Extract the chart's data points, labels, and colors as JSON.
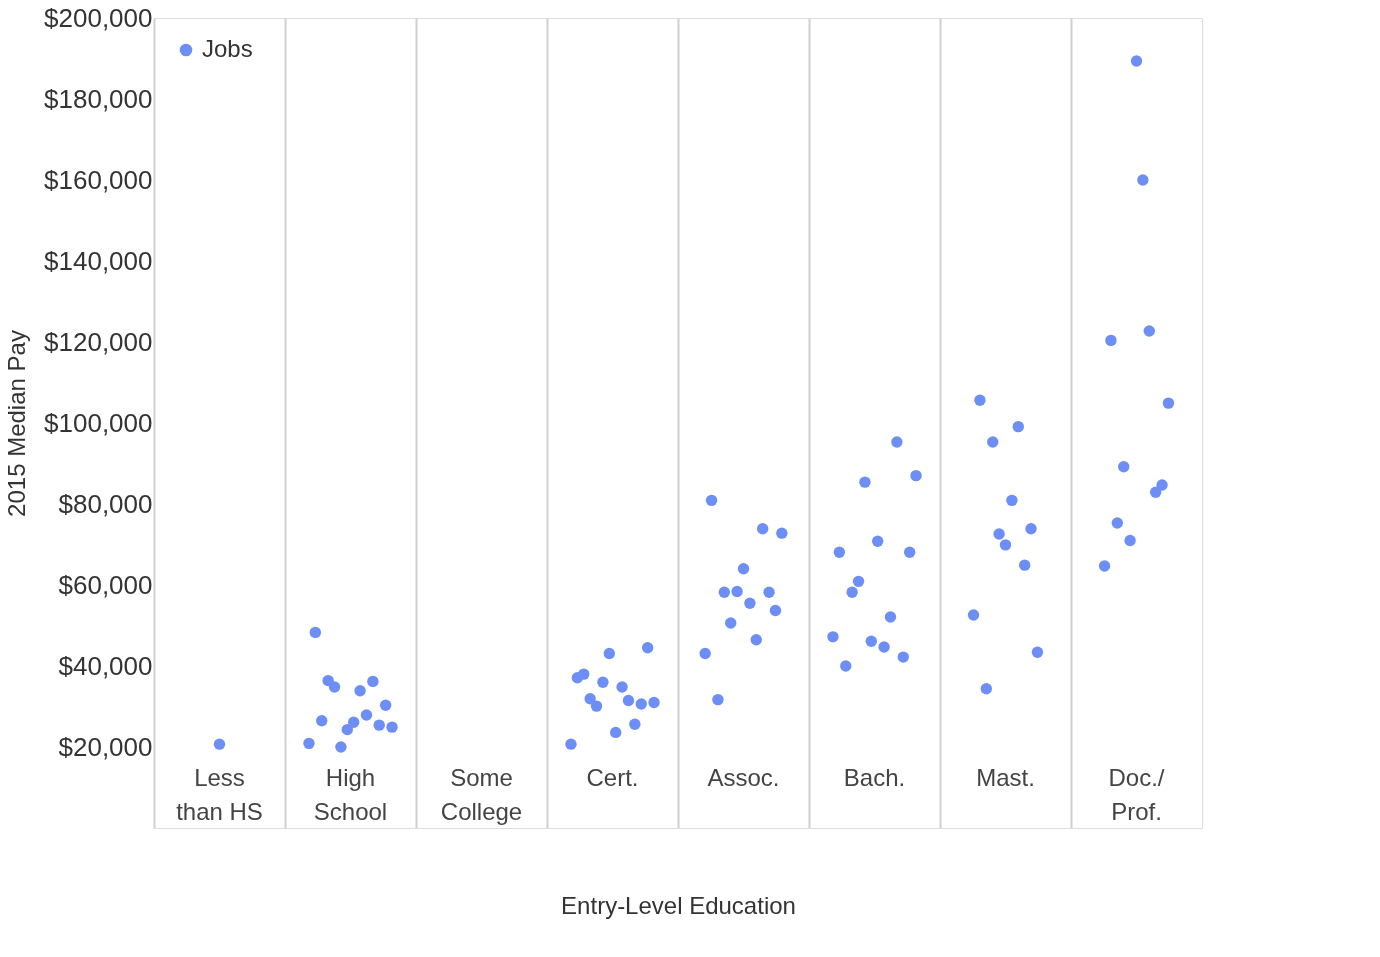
{
  "chart_data": {
    "type": "scatter",
    "xlabel": "Entry-Level Education",
    "ylabel": "2015 Median Pay",
    "categories": [
      "Less\nthan HS",
      "High\nSchool",
      "Some\nCollege",
      "Cert.",
      "Assoc.",
      "Bach.",
      "Mast.",
      "Doc./\nProf."
    ],
    "ylim": [
      0,
      200000
    ],
    "yticks": [
      {
        "value": 20000,
        "label": "$20,000"
      },
      {
        "value": 40000,
        "label": "$40,000"
      },
      {
        "value": 60000,
        "label": "$60,000"
      },
      {
        "value": 80000,
        "label": "$80,000"
      },
      {
        "value": 100000,
        "label": "$100,000"
      },
      {
        "value": 120000,
        "label": "$120,000"
      },
      {
        "value": 140000,
        "label": "$140,000"
      },
      {
        "value": 160000,
        "label": "$160,000"
      },
      {
        "value": 180000,
        "label": "$180,000"
      },
      {
        "value": 200000,
        "label": "$200,000"
      }
    ],
    "grid": "x",
    "legend": "top left",
    "marker": "circle",
    "series": [
      {
        "name": "Jobs",
        "color": "#6d8ff5",
        "x": [
          "Less\nthan HS",
          "High\nSchool",
          "High\nSchool",
          "High\nSchool",
          "High\nSchool",
          "High\nSchool",
          "High\nSchool",
          "High\nSchool",
          "High\nSchool",
          "High\nSchool",
          "High\nSchool",
          "High\nSchool",
          "High\nSchool",
          "High\nSchool",
          "High\nSchool",
          "Cert.",
          "Cert.",
          "Cert.",
          "Cert.",
          "Cert.",
          "Cert.",
          "Cert.",
          "Cert.",
          "Cert.",
          "Cert.",
          "Cert.",
          "Cert.",
          "Cert.",
          "Cert.",
          "Assoc.",
          "Assoc.",
          "Assoc.",
          "Assoc.",
          "Assoc.",
          "Assoc.",
          "Assoc.",
          "Assoc.",
          "Assoc.",
          "Assoc.",
          "Assoc.",
          "Assoc.",
          "Assoc.",
          "Bach.",
          "Bach.",
          "Bach.",
          "Bach.",
          "Bach.",
          "Bach.",
          "Bach.",
          "Bach.",
          "Bach.",
          "Bach.",
          "Bach.",
          "Bach.",
          "Bach.",
          "Bach.",
          "Mast.",
          "Mast.",
          "Mast.",
          "Mast.",
          "Mast.",
          "Mast.",
          "Mast.",
          "Mast.",
          "Mast.",
          "Mast.",
          "Mast.",
          "Doc./\nProf.",
          "Doc./\nProf.",
          "Doc./\nProf.",
          "Doc./\nProf.",
          "Doc./\nProf.",
          "Doc./\nProf.",
          "Doc./\nProf.",
          "Doc./\nProf.",
          "Doc./\nProf.",
          "Doc./\nProf.",
          "Doc./\nProf."
        ],
        "values": [
          20700,
          20900,
          48300,
          26500,
          36400,
          34800,
          20000,
          24300,
          26100,
          33900,
          27900,
          36200,
          25400,
          30300,
          24900,
          20700,
          37100,
          38000,
          31900,
          30100,
          36000,
          43100,
          23600,
          34800,
          31500,
          25600,
          30600,
          44500,
          31000,
          43100,
          80900,
          31700,
          58200,
          50600,
          58400,
          64000,
          55500,
          46500,
          73900,
          58200,
          53700,
          72800,
          47200,
          68100,
          40000,
          58200,
          60900,
          85400,
          46100,
          70800,
          44700,
          52100,
          95300,
          42200,
          68100,
          87000,
          52600,
          105600,
          34400,
          95300,
          72600,
          69900,
          80900,
          99100,
          64900,
          73900,
          43400,
          64700,
          120400,
          75300,
          89200,
          71000,
          189400,
          160000,
          122700,
          82900,
          84700,
          104900
        ]
      }
    ]
  }
}
